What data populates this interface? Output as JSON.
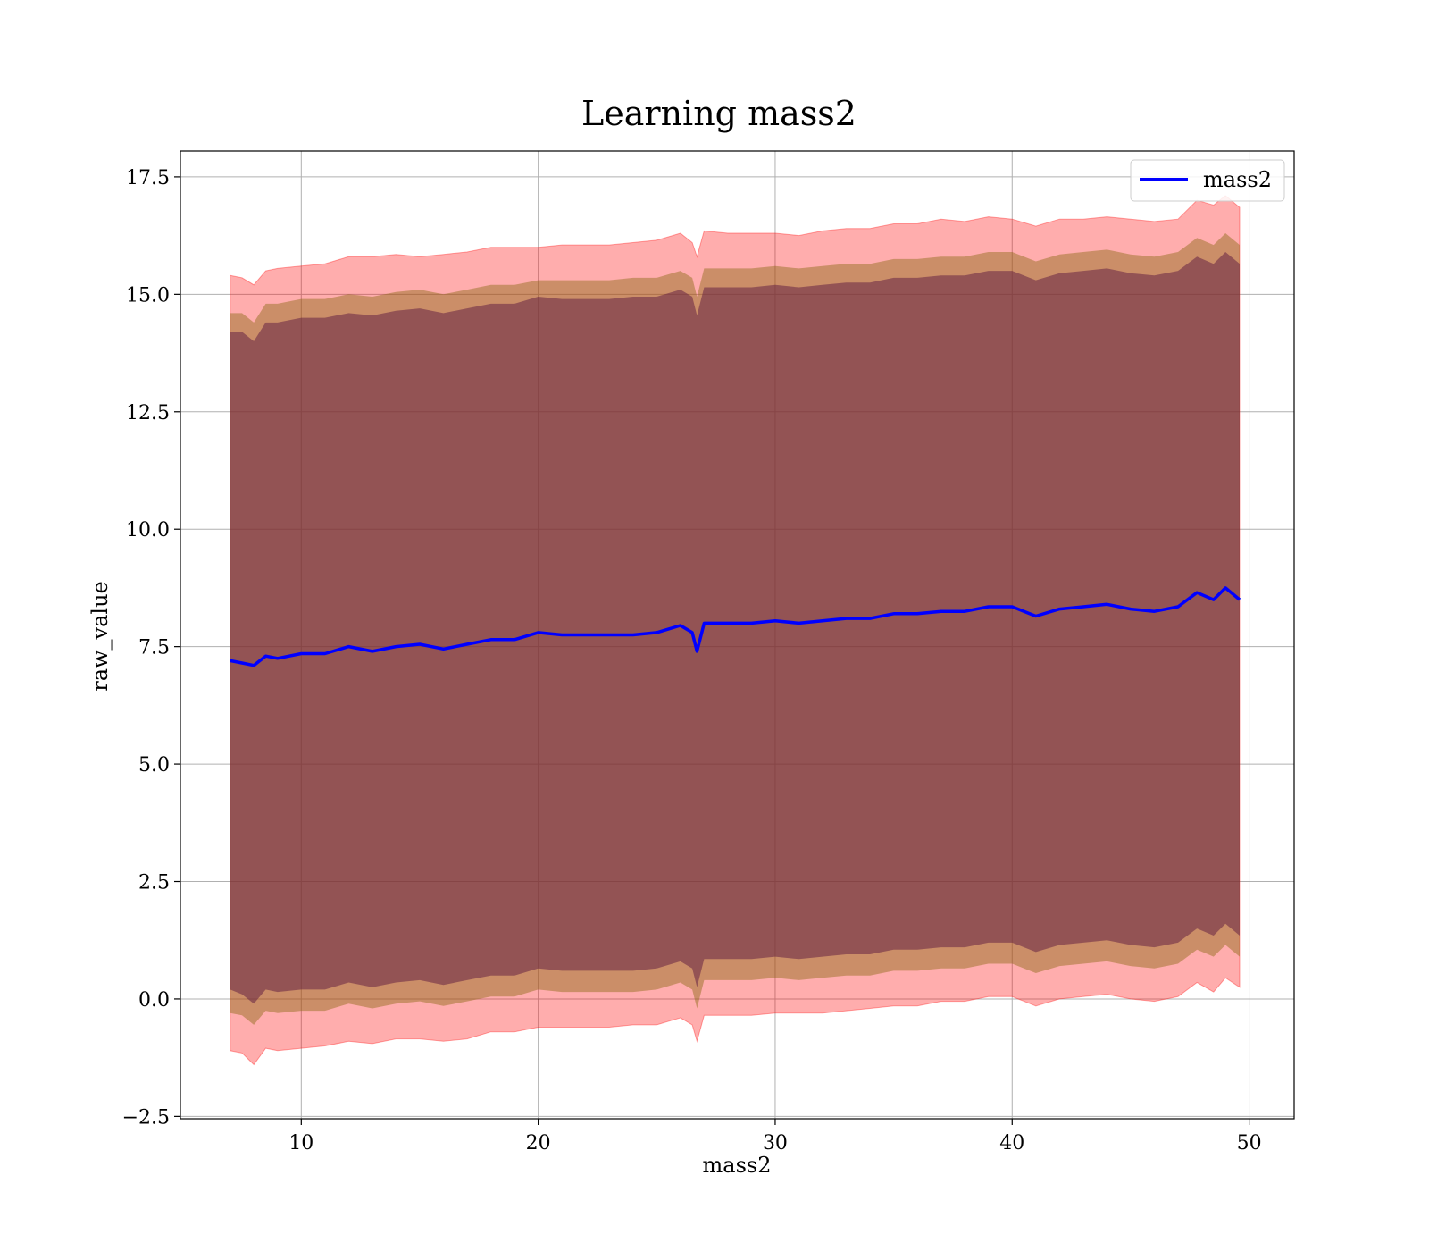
{
  "chart_data": {
    "type": "line",
    "title": "Learning mass2",
    "xlabel": "mass2",
    "ylabel": "raw_value",
    "xlim": [
      4.9,
      51.9
    ],
    "ylim": [
      -2.55,
      18.05
    ],
    "xticks": [
      10,
      20,
      30,
      40,
      50
    ],
    "yticks": [
      -2.5,
      0.0,
      2.5,
      5.0,
      7.5,
      10.0,
      12.5,
      15.0,
      17.5
    ],
    "grid": true,
    "legend": {
      "placement": "top-right",
      "entries": [
        "mass2"
      ]
    },
    "colors": {
      "line": "#0000ff",
      "band_outer": "#ff0000",
      "band_mid": "#8b6914",
      "band_inner": "#662244"
    },
    "series": [
      {
        "name": "mass2",
        "x": [
          7.0,
          7.5,
          8.0,
          8.5,
          9.0,
          10.0,
          11.0,
          12.0,
          13.0,
          14.0,
          15.0,
          16.0,
          17.0,
          18.0,
          19.0,
          20.0,
          21.0,
          22.0,
          23.0,
          24.0,
          25.0,
          26.0,
          26.5,
          26.7,
          27.0,
          28.0,
          29.0,
          30.0,
          31.0,
          32.0,
          33.0,
          34.0,
          35.0,
          36.0,
          37.0,
          38.0,
          39.0,
          40.0,
          41.0,
          42.0,
          43.0,
          44.0,
          45.0,
          46.0,
          47.0,
          47.8,
          48.5,
          49.0,
          49.6
        ],
        "y": [
          7.2,
          7.15,
          7.1,
          7.3,
          7.25,
          7.35,
          7.35,
          7.5,
          7.4,
          7.5,
          7.55,
          7.45,
          7.55,
          7.65,
          7.65,
          7.8,
          7.75,
          7.75,
          7.75,
          7.75,
          7.8,
          7.95,
          7.8,
          7.4,
          8.0,
          8.0,
          8.0,
          8.05,
          8.0,
          8.05,
          8.1,
          8.1,
          8.2,
          8.2,
          8.25,
          8.25,
          8.35,
          8.35,
          8.15,
          8.3,
          8.35,
          8.4,
          8.3,
          8.25,
          8.35,
          8.65,
          8.5,
          8.75,
          8.5
        ],
        "band_outer_upper": [
          15.4,
          15.35,
          15.2,
          15.5,
          15.55,
          15.6,
          15.65,
          15.8,
          15.8,
          15.85,
          15.8,
          15.85,
          15.9,
          16.0,
          16.0,
          16.0,
          16.05,
          16.05,
          16.05,
          16.1,
          16.15,
          16.3,
          16.1,
          15.8,
          16.35,
          16.3,
          16.3,
          16.3,
          16.25,
          16.35,
          16.4,
          16.4,
          16.5,
          16.5,
          16.6,
          16.55,
          16.65,
          16.6,
          16.45,
          16.6,
          16.6,
          16.65,
          16.6,
          16.55,
          16.6,
          17.0,
          16.9,
          17.1,
          16.85
        ],
        "band_mid_upper": [
          14.6,
          14.6,
          14.4,
          14.8,
          14.8,
          14.9,
          14.9,
          15.0,
          14.95,
          15.05,
          15.1,
          15.0,
          15.1,
          15.2,
          15.2,
          15.3,
          15.3,
          15.3,
          15.3,
          15.35,
          15.35,
          15.5,
          15.35,
          14.95,
          15.55,
          15.55,
          15.55,
          15.6,
          15.55,
          15.6,
          15.65,
          15.65,
          15.75,
          15.75,
          15.8,
          15.8,
          15.9,
          15.9,
          15.7,
          15.85,
          15.9,
          15.95,
          15.85,
          15.8,
          15.9,
          16.2,
          16.05,
          16.3,
          16.05
        ],
        "band_inner_upper": [
          14.2,
          14.2,
          14.0,
          14.4,
          14.4,
          14.5,
          14.5,
          14.6,
          14.55,
          14.65,
          14.7,
          14.6,
          14.7,
          14.8,
          14.8,
          14.95,
          14.9,
          14.9,
          14.9,
          14.95,
          14.95,
          15.1,
          14.95,
          14.55,
          15.15,
          15.15,
          15.15,
          15.2,
          15.15,
          15.2,
          15.25,
          15.25,
          15.35,
          15.35,
          15.4,
          15.4,
          15.5,
          15.5,
          15.3,
          15.45,
          15.5,
          15.55,
          15.45,
          15.4,
          15.5,
          15.8,
          15.65,
          15.9,
          15.65
        ],
        "band_inner_lower": [
          0.2,
          0.1,
          -0.1,
          0.2,
          0.15,
          0.2,
          0.2,
          0.35,
          0.25,
          0.35,
          0.4,
          0.3,
          0.4,
          0.5,
          0.5,
          0.65,
          0.6,
          0.6,
          0.6,
          0.6,
          0.65,
          0.8,
          0.65,
          0.25,
          0.85,
          0.85,
          0.85,
          0.9,
          0.85,
          0.9,
          0.95,
          0.95,
          1.05,
          1.05,
          1.1,
          1.1,
          1.2,
          1.2,
          1.0,
          1.15,
          1.2,
          1.25,
          1.15,
          1.1,
          1.2,
          1.5,
          1.35,
          1.6,
          1.35
        ],
        "band_mid_lower": [
          -0.3,
          -0.35,
          -0.55,
          -0.25,
          -0.3,
          -0.25,
          -0.25,
          -0.1,
          -0.2,
          -0.1,
          -0.05,
          -0.15,
          -0.05,
          0.05,
          0.05,
          0.2,
          0.15,
          0.15,
          0.15,
          0.15,
          0.2,
          0.35,
          0.2,
          -0.2,
          0.4,
          0.4,
          0.4,
          0.45,
          0.4,
          0.45,
          0.5,
          0.5,
          0.6,
          0.6,
          0.65,
          0.65,
          0.75,
          0.75,
          0.55,
          0.7,
          0.75,
          0.8,
          0.7,
          0.65,
          0.75,
          1.05,
          0.9,
          1.15,
          0.9
        ],
        "band_outer_lower": [
          -1.1,
          -1.15,
          -1.4,
          -1.05,
          -1.1,
          -1.05,
          -1.0,
          -0.9,
          -0.95,
          -0.85,
          -0.85,
          -0.9,
          -0.85,
          -0.7,
          -0.7,
          -0.6,
          -0.6,
          -0.6,
          -0.6,
          -0.55,
          -0.55,
          -0.4,
          -0.55,
          -0.9,
          -0.35,
          -0.35,
          -0.35,
          -0.3,
          -0.3,
          -0.3,
          -0.25,
          -0.2,
          -0.15,
          -0.15,
          -0.05,
          -0.05,
          0.05,
          0.05,
          -0.15,
          0.0,
          0.05,
          0.1,
          0.0,
          -0.05,
          0.05,
          0.35,
          0.15,
          0.45,
          0.25
        ]
      }
    ]
  }
}
